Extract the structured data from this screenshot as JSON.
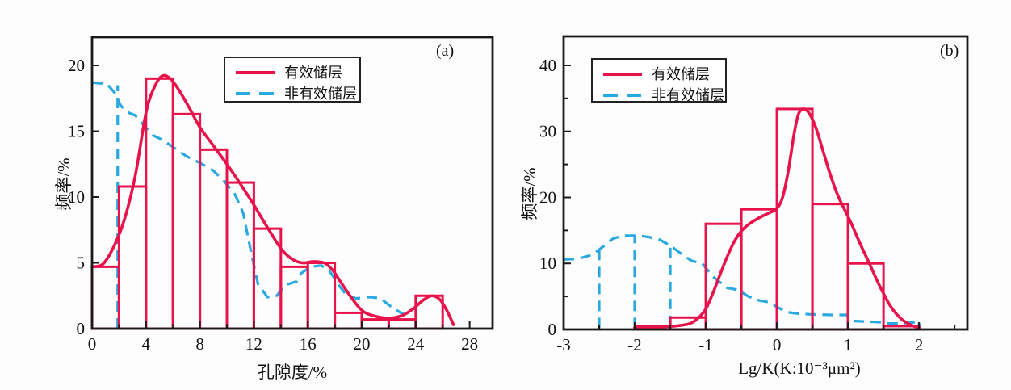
{
  "figure": {
    "background": "#ffffff"
  },
  "colors": {
    "effective": "#e8134b",
    "non_effective": "#29a9e1",
    "axis": "#1a1a1a",
    "text": "#111111"
  },
  "chart_data": [
    {
      "panel_label": "(a)",
      "type": "bar",
      "title": "",
      "xlabel": "孔隙度/%",
      "ylabel": "频率/%",
      "xlim": [
        0,
        29.7
      ],
      "ylim": [
        0,
        22.15
      ],
      "xticks": [
        0,
        4,
        8,
        12,
        16,
        20,
        24,
        28
      ],
      "xticks_minor": [
        2,
        6,
        10,
        14,
        18,
        22,
        26
      ],
      "yticks": [
        0,
        5,
        10,
        15,
        20
      ],
      "yticks_minor": [],
      "grid": false,
      "legend_position": "top-center",
      "bin_width": 2,
      "series": [
        {
          "name": "有效储层",
          "style": "solid",
          "color": "#e8134b",
          "bins": [
            [
              0,
              4.7
            ],
            [
              2,
              10.8
            ],
            [
              4,
              19
            ],
            [
              6,
              16.3
            ],
            [
              8,
              13.6
            ],
            [
              10,
              11.1
            ],
            [
              12,
              7.6
            ],
            [
              14,
              4.7
            ],
            [
              16,
              5
            ],
            [
              18,
              1.2
            ],
            [
              20,
              0.7
            ],
            [
              22,
              0.7
            ],
            [
              24,
              2.5
            ]
          ],
          "curve": [
            [
              0,
              4.7
            ],
            [
              0.8,
              4.9
            ],
            [
              1.6,
              6.2
            ],
            [
              2.4,
              8.3
            ],
            [
              3.2,
              11.6
            ],
            [
              4,
              16.4
            ],
            [
              4.6,
              18.3
            ],
            [
              5.2,
              19.2
            ],
            [
              5.8,
              19
            ],
            [
              6.4,
              18.2
            ],
            [
              7.2,
              16.8
            ],
            [
              8,
              15.3
            ],
            [
              9,
              13.9
            ],
            [
              10,
              12.5
            ],
            [
              11,
              11
            ],
            [
              12,
              9.4
            ],
            [
              13,
              7.7
            ],
            [
              14,
              6.1
            ],
            [
              14.8,
              5.3
            ],
            [
              15.6,
              5
            ],
            [
              16.4,
              5.1
            ],
            [
              17.2,
              5
            ],
            [
              17.8,
              4.5
            ],
            [
              18.4,
              3.6
            ],
            [
              19.2,
              2.4
            ],
            [
              20,
              1.4
            ],
            [
              20.8,
              1
            ],
            [
              22,
              0.8
            ],
            [
              23,
              1
            ],
            [
              23.8,
              1.5
            ],
            [
              24.6,
              2.2
            ],
            [
              25.2,
              2.5
            ],
            [
              25.8,
              2.2
            ],
            [
              26.3,
              1.4
            ],
            [
              26.8,
              0.3
            ]
          ]
        },
        {
          "name": "非有效储层",
          "style": "dashed",
          "color": "#29a9e1",
          "bins": [],
          "curve": [
            [
              0,
              18.7
            ],
            [
              1.1,
              18.6
            ],
            [
              1.7,
              17.9
            ],
            [
              2.1,
              17
            ],
            [
              2.5,
              16.5
            ],
            [
              3.2,
              16.2
            ],
            [
              3.8,
              15.5
            ],
            [
              4.5,
              14.7
            ],
            [
              5.3,
              14.3
            ],
            [
              6,
              13.8
            ],
            [
              7,
              13.1
            ],
            [
              8,
              12.6
            ],
            [
              9,
              12
            ],
            [
              9.8,
              11.2
            ],
            [
              10.6,
              10.2
            ],
            [
              11.2,
              8.8
            ],
            [
              11.8,
              5.8
            ],
            [
              12.3,
              3.4
            ],
            [
              13,
              2.4
            ],
            [
              13.7,
              2.5
            ],
            [
              14.3,
              3.3
            ],
            [
              15.2,
              3.6
            ],
            [
              15.5,
              4.2
            ],
            [
              16.2,
              4.7
            ],
            [
              17,
              4.8
            ],
            [
              17.6,
              4.4
            ],
            [
              18.3,
              3.3
            ],
            [
              18.9,
              2.5
            ],
            [
              19.6,
              2.3
            ],
            [
              20.6,
              2.4
            ],
            [
              21.4,
              2.3
            ],
            [
              22,
              1.8
            ],
            [
              22.9,
              1.2
            ],
            [
              23.6,
              0.9
            ]
          ],
          "vertical_dashes": [
            [
              1.9,
              0,
              18.5
            ]
          ]
        }
      ]
    },
    {
      "panel_label": "(b)",
      "type": "bar",
      "title": "",
      "xlabel": "Lg/K(K:10⁻³μm²)",
      "ylabel": "频率/%",
      "xlim": [
        -3,
        2.68
      ],
      "ylim": [
        0,
        44.4
      ],
      "xticks": [
        -3,
        -2,
        -1,
        0,
        1,
        2
      ],
      "xticks_minor": [
        -2.5,
        -1.5,
        -0.5,
        0.5,
        1.5,
        2.5
      ],
      "yticks": [
        0,
        10,
        20,
        30,
        40
      ],
      "yticks_minor": [
        5,
        15,
        25,
        35
      ],
      "grid": false,
      "legend_position": "top-left",
      "bin_width": 0.5,
      "series": [
        {
          "name": "有效储层",
          "style": "solid",
          "color": "#e8134b",
          "bins": [
            [
              -2,
              0.5
            ],
            [
              -1.5,
              1.8
            ],
            [
              -1,
              16
            ],
            [
              -0.5,
              18.2
            ],
            [
              0,
              33.4
            ],
            [
              0.5,
              19
            ],
            [
              1,
              10
            ],
            [
              1.5,
              0.5
            ]
          ],
          "curve": [
            [
              -2,
              0.3
            ],
            [
              -1.8,
              0.3
            ],
            [
              -1.6,
              0.4
            ],
            [
              -1.45,
              0.5
            ],
            [
              -1.3,
              0.7
            ],
            [
              -1.2,
              1
            ],
            [
              -1.1,
              1.8
            ],
            [
              -1,
              3.1
            ],
            [
              -0.9,
              5.5
            ],
            [
              -0.8,
              8.3
            ],
            [
              -0.7,
              11
            ],
            [
              -0.6,
              13.3
            ],
            [
              -0.5,
              14.9
            ],
            [
              -0.4,
              15.9
            ],
            [
              -0.3,
              16.6
            ],
            [
              -0.2,
              17.2
            ],
            [
              -0.1,
              17.7
            ],
            [
              0,
              18.3
            ],
            [
              0.08,
              20
            ],
            [
              0.16,
              24
            ],
            [
              0.24,
              29.5
            ],
            [
              0.3,
              32.5
            ],
            [
              0.36,
              33.4
            ],
            [
              0.45,
              32.8
            ],
            [
              0.55,
              30.5
            ],
            [
              0.65,
              27
            ],
            [
              0.75,
              23.5
            ],
            [
              0.85,
              20.5
            ],
            [
              0.95,
              18.2
            ],
            [
              1.05,
              16
            ],
            [
              1.15,
              13.5
            ],
            [
              1.3,
              10
            ],
            [
              1.45,
              6.5
            ],
            [
              1.6,
              3.5
            ],
            [
              1.75,
              1.6
            ],
            [
              1.9,
              0.6
            ],
            [
              2,
              0.3
            ]
          ]
        },
        {
          "name": "非有效储层",
          "style": "dashed",
          "color": "#29a9e1",
          "bins": [],
          "curve": [
            [
              -3,
              10.6
            ],
            [
              -2.8,
              10.7
            ],
            [
              -2.6,
              11.3
            ],
            [
              -2.45,
              12.5
            ],
            [
              -2.3,
              13.8
            ],
            [
              -2.15,
              14.2
            ],
            [
              -1.95,
              14.2
            ],
            [
              -1.8,
              14
            ],
            [
              -1.65,
              13.6
            ],
            [
              -1.5,
              12.7
            ],
            [
              -1.35,
              11.5
            ],
            [
              -1.2,
              10.4
            ],
            [
              -1.05,
              10
            ],
            [
              -0.9,
              8
            ],
            [
              -0.7,
              6.3
            ],
            [
              -0.55,
              6
            ],
            [
              -0.4,
              5
            ],
            [
              -0.25,
              4.4
            ],
            [
              -0.1,
              4.1
            ],
            [
              0,
              3.4
            ],
            [
              0.15,
              2.6
            ],
            [
              0.3,
              2.4
            ],
            [
              0.45,
              2.3
            ],
            [
              0.6,
              2.25
            ],
            [
              0.8,
              2.2
            ],
            [
              0.98,
              2.2
            ],
            [
              1.05,
              1.3
            ],
            [
              1.25,
              1.2
            ],
            [
              1.45,
              1.1
            ],
            [
              1.55,
              0.9
            ],
            [
              1.75,
              0.9
            ],
            [
              1.9,
              1.05
            ],
            [
              2,
              1
            ]
          ],
          "vertical_dashes": [
            [
              -2.5,
              0.2,
              12.3
            ],
            [
              -2,
              0.2,
              14.1
            ],
            [
              -1.5,
              0.5,
              12.8
            ],
            [
              0.5,
              0,
              2.3
            ],
            [
              1,
              0,
              2.3
            ],
            [
              2,
              0,
              1
            ]
          ]
        }
      ]
    }
  ]
}
